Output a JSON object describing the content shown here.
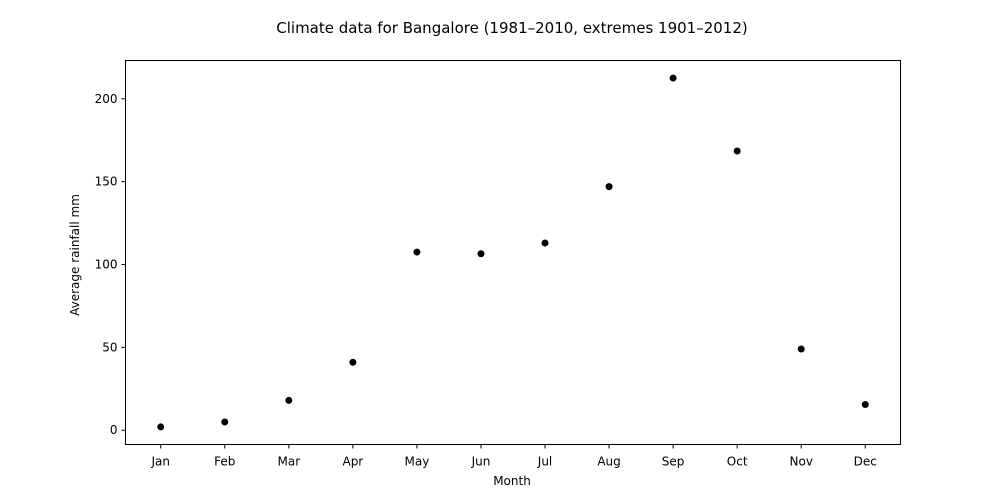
{
  "chart_data": {
    "type": "scatter",
    "title": "Climate data for Bangalore (1981–2010, extremes 1901–2012)",
    "xlabel": "Month",
    "ylabel": "Average rainfall mm",
    "categories": [
      "Jan",
      "Feb",
      "Mar",
      "Apr",
      "May",
      "Jun",
      "Jul",
      "Aug",
      "Sep",
      "Oct",
      "Nov",
      "Dec"
    ],
    "values": [
      2.0,
      5.0,
      18.0,
      41.0,
      107.5,
      106.5,
      113.0,
      147.0,
      212.5,
      168.5,
      49.0,
      15.5
    ],
    "y_ticks": [
      0,
      50,
      100,
      150,
      200
    ],
    "ylim": [
      -8.6,
      223.1
    ],
    "grid": false,
    "legend": "none",
    "marker_color": "#000000"
  }
}
